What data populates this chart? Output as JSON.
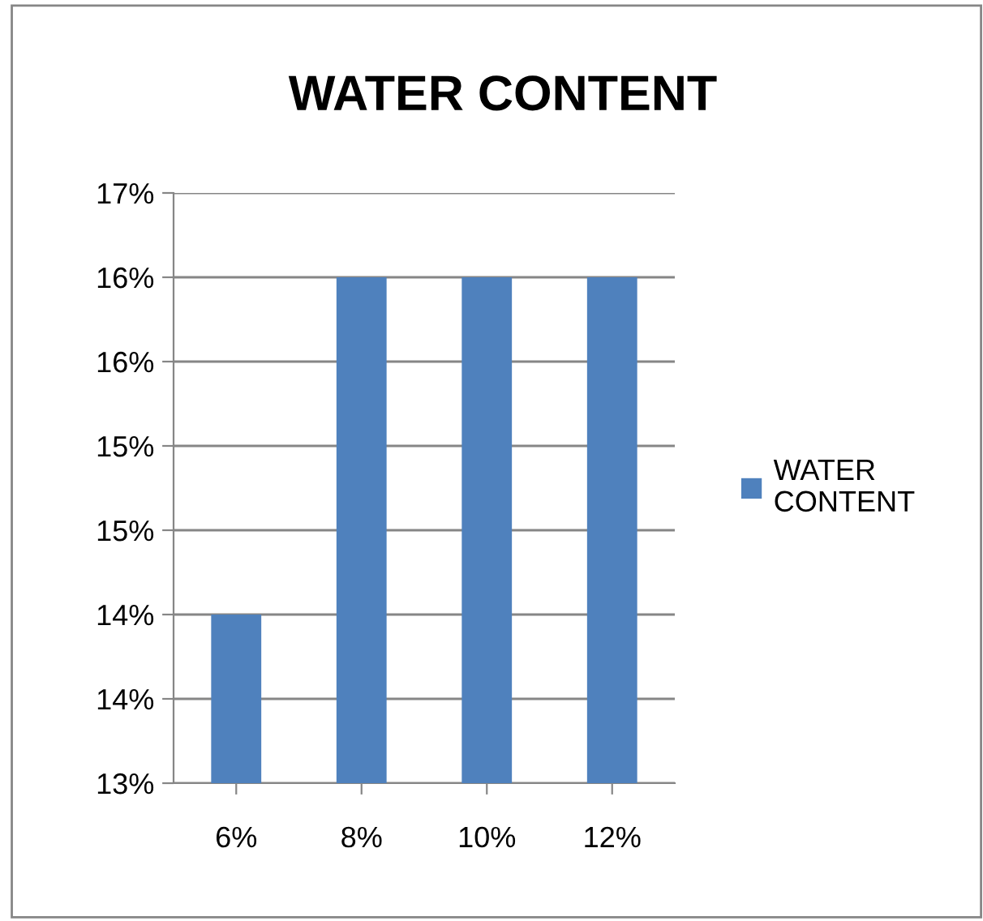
{
  "chart_data": {
    "type": "bar",
    "title": "WATER CONTENT",
    "categories": [
      "6%",
      "8%",
      "10%",
      "12%"
    ],
    "series": [
      {
        "name": "WATER CONTENT",
        "color": "#4f81bd",
        "values": [
          14.0,
          16.0,
          16.0,
          16.0
        ]
      }
    ],
    "ylim": [
      13,
      16.5
    ],
    "yticks": [
      {
        "value": 13,
        "label": "13%"
      },
      {
        "value": 13.5,
        "label": "14%"
      },
      {
        "value": 14,
        "label": "14%"
      },
      {
        "value": 14.5,
        "label": "15%"
      },
      {
        "value": 15,
        "label": "15%"
      },
      {
        "value": 15.5,
        "label": "16%"
      },
      {
        "value": 16,
        "label": "16%"
      },
      {
        "value": 16.5,
        "label": "17%"
      }
    ],
    "grid": "y",
    "legend": "right"
  }
}
